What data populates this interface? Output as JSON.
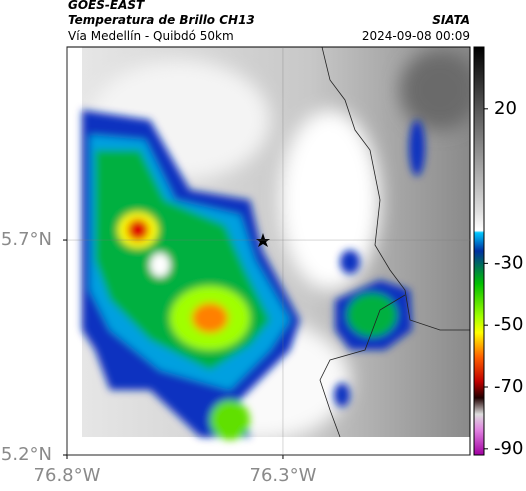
{
  "header": {
    "title": "GOES-EAST",
    "subtitle": "Temperatura de Brillo CH13",
    "route": "Vía Medellín - Quibdó 50km",
    "source": "SIATA",
    "datetime": "2024-09-08 00:09"
  },
  "map": {
    "xlim": [
      -76.8,
      -75.867
    ],
    "ylim": [
      5.2,
      6.149
    ],
    "xticks": [
      {
        "value": -76.8,
        "label": "76.8°W"
      },
      {
        "value": -76.3,
        "label": "76.3°W"
      }
    ],
    "yticks": [
      {
        "value": 5.7,
        "label": "5.7°N"
      },
      {
        "value": 5.2,
        "label": "5.2°N"
      }
    ],
    "grid": true
  },
  "colorbar": {
    "lim": [
      -92,
      40
    ],
    "ticks": [
      20,
      -30,
      -50,
      -70,
      -90
    ]
  }
}
